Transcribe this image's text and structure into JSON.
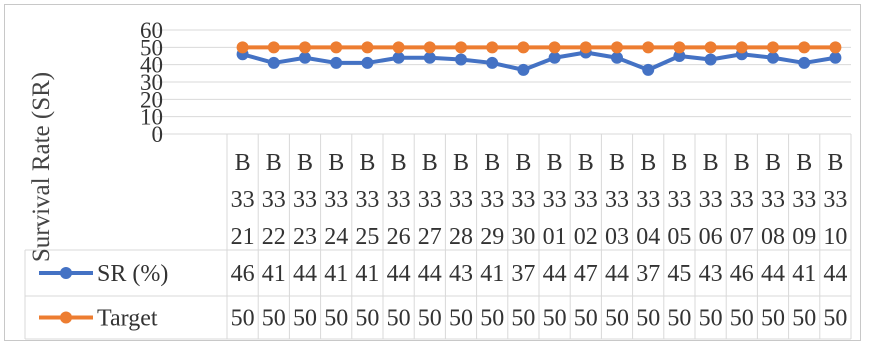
{
  "chart_data": {
    "type": "line",
    "ylabel": "Survival Rate (SR)",
    "ylim": [
      0,
      60
    ],
    "yticks": [
      "0",
      "10",
      "20",
      "30",
      "40",
      "50",
      "60"
    ],
    "grid": true,
    "legend_position": "data-table-left",
    "categories": [
      [
        "B",
        "33",
        "21"
      ],
      [
        "B",
        "33",
        "22"
      ],
      [
        "B",
        "33",
        "23"
      ],
      [
        "B",
        "33",
        "24"
      ],
      [
        "B",
        "33",
        "25"
      ],
      [
        "B",
        "33",
        "26"
      ],
      [
        "B",
        "33",
        "27"
      ],
      [
        "B",
        "33",
        "28"
      ],
      [
        "B",
        "33",
        "29"
      ],
      [
        "B",
        "33",
        "30"
      ],
      [
        "B",
        "33",
        "01"
      ],
      [
        "B",
        "33",
        "02"
      ],
      [
        "B",
        "33",
        "03"
      ],
      [
        "B",
        "33",
        "04"
      ],
      [
        "B",
        "33",
        "05"
      ],
      [
        "B",
        "33",
        "06"
      ],
      [
        "B",
        "33",
        "07"
      ],
      [
        "B",
        "33",
        "08"
      ],
      [
        "B",
        "33",
        "09"
      ],
      [
        "B",
        "33",
        "10"
      ]
    ],
    "series": [
      {
        "name": "SR (%)",
        "color": "#4472C4",
        "values": [
          46,
          41,
          44,
          41,
          41,
          44,
          44,
          43,
          41,
          37,
          44,
          47,
          44,
          37,
          45,
          43,
          46,
          44,
          41,
          44
        ]
      },
      {
        "name": "Target",
        "color": "#ED7D31",
        "values": [
          50,
          50,
          50,
          50,
          50,
          50,
          50,
          50,
          50,
          50,
          50,
          50,
          50,
          50,
          50,
          50,
          50,
          50,
          50,
          50
        ]
      }
    ]
  }
}
